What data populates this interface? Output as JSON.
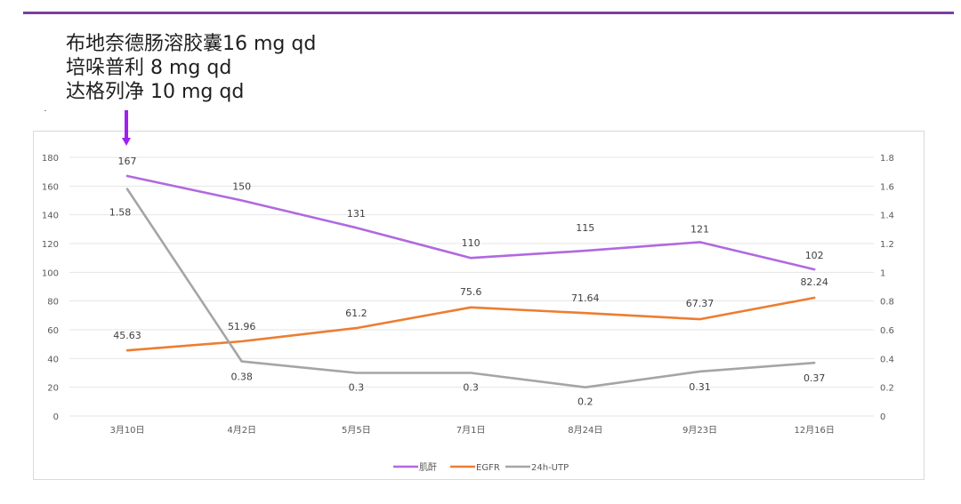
{
  "annotation": {
    "lines": [
      "布地奈德肠溶胶囊16 mg qd",
      "培哚普利 8 mg qd",
      "达格列净 10 mg qd"
    ],
    "arrow_color": "#a020f0"
  },
  "chart_data": {
    "type": "line",
    "categories": [
      "3月10日",
      "4月2日",
      "5月5日",
      "7月1日",
      "8月24日",
      "9月23日",
      "12月16日"
    ],
    "y_left": {
      "min": 0,
      "max": 180,
      "step": 20,
      "ticks": [
        "0",
        "20",
        "40",
        "60",
        "80",
        "100",
        "120",
        "140",
        "160",
        "180"
      ]
    },
    "y_right": {
      "min": 0,
      "max": 1.8,
      "step": 0.2,
      "ticks": [
        "0",
        "0.2",
        "0.4",
        "0.6",
        "0.8",
        "1",
        "1.2",
        "1.4",
        "1.6",
        "1.8"
      ]
    },
    "series": [
      {
        "name": "肌酐",
        "axis": "left",
        "color": "#b069e0",
        "values": [
          167,
          150,
          131,
          110,
          115,
          121,
          102
        ],
        "labels": [
          "167",
          "150",
          "131",
          "110",
          "115",
          "121",
          "102"
        ]
      },
      {
        "name": "EGFR",
        "axis": "left",
        "color": "#ed7d31",
        "values": [
          45.63,
          51.96,
          61.2,
          75.6,
          71.64,
          67.37,
          82.24
        ],
        "labels": [
          "45.63",
          "51.96",
          "61.2",
          "75.6",
          "71.64",
          "67.37",
          "82.24"
        ]
      },
      {
        "name": "24h-UTP",
        "axis": "right",
        "color": "#a5a5a5",
        "values": [
          1.58,
          0.38,
          0.3,
          0.3,
          0.2,
          0.31,
          0.37
        ],
        "labels": [
          "1.58",
          "0.38",
          "0.3",
          "0.3",
          "0.2",
          "0.31",
          "0.37"
        ]
      }
    ],
    "legend": [
      "肌酐",
      "EGFR",
      "24h-UTP"
    ],
    "legend_position": "bottom",
    "grid": true
  }
}
